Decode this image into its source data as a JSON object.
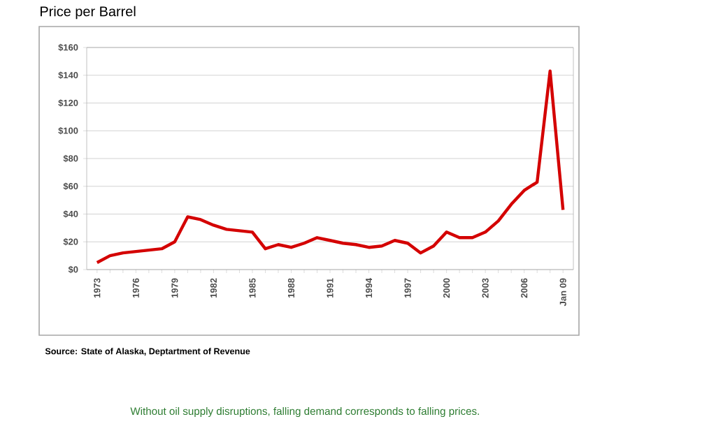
{
  "chart_data": {
    "type": "line",
    "title": "Price per Barrel",
    "annotations": [
      "Source: State of Alaska, Deptartment of Revenue",
      "Without oil supply disruptions, falling demand corresponds to falling prices."
    ],
    "x": [
      1973,
      1974,
      1975,
      1976,
      1977,
      1978,
      1979,
      1980,
      1981,
      1982,
      1983,
      1984,
      1985,
      1986,
      1987,
      1988,
      1989,
      1990,
      1991,
      1992,
      1993,
      1994,
      1995,
      1996,
      1997,
      1998,
      1999,
      2000,
      2001,
      2002,
      2003,
      2004,
      2005,
      2006,
      2007,
      2008,
      2009
    ],
    "series": [
      {
        "color": "#d40000",
        "values": [
          5,
          10,
          12,
          13,
          14,
          15,
          20,
          38,
          36,
          32,
          29,
          28,
          27,
          15,
          18,
          16,
          19,
          23,
          21,
          19,
          18,
          16,
          17,
          21,
          19,
          12,
          17,
          27,
          23,
          23,
          27,
          35,
          47,
          57,
          63,
          143,
          43
        ]
      }
    ],
    "xlim": [
      1972.2,
      2009.8
    ],
    "ylim": [
      0,
      160
    ],
    "xticks": [
      {
        "value": 1973,
        "label": "1973"
      },
      {
        "value": 1974,
        "label": null
      },
      {
        "value": 1975,
        "label": null
      },
      {
        "value": 1976,
        "label": "1976"
      },
      {
        "value": 1977,
        "label": null
      },
      {
        "value": 1978,
        "label": null
      },
      {
        "value": 1979,
        "label": "1979"
      },
      {
        "value": 1980,
        "label": null
      },
      {
        "value": 1981,
        "label": null
      },
      {
        "value": 1982,
        "label": "1982"
      },
      {
        "value": 1983,
        "label": null
      },
      {
        "value": 1984,
        "label": null
      },
      {
        "value": 1985,
        "label": "1985"
      },
      {
        "value": 1986,
        "label": null
      },
      {
        "value": 1987,
        "label": null
      },
      {
        "value": 1988,
        "label": "1988"
      },
      {
        "value": 1989,
        "label": null
      },
      {
        "value": 1990,
        "label": null
      },
      {
        "value": 1991,
        "label": "1991"
      },
      {
        "value": 1992,
        "label": null
      },
      {
        "value": 1993,
        "label": null
      },
      {
        "value": 1994,
        "label": "1994"
      },
      {
        "value": 1995,
        "label": null
      },
      {
        "value": 1996,
        "label": null
      },
      {
        "value": 1997,
        "label": "1997"
      },
      {
        "value": 1998,
        "label": null
      },
      {
        "value": 1999,
        "label": null
      },
      {
        "value": 2000,
        "label": "2000"
      },
      {
        "value": 2001,
        "label": null
      },
      {
        "value": 2002,
        "label": null
      },
      {
        "value": 2003,
        "label": "2003"
      },
      {
        "value": 2004,
        "label": null
      },
      {
        "value": 2005,
        "label": null
      },
      {
        "value": 2006,
        "label": "2006"
      },
      {
        "value": 2007,
        "label": null
      },
      {
        "value": 2008,
        "label": null
      },
      {
        "value": 2009,
        "label": "Jan 09"
      }
    ],
    "yticks": [
      {
        "value": 0,
        "label": "$0"
      },
      {
        "value": 20,
        "label": "$20"
      },
      {
        "value": 40,
        "label": "$40"
      },
      {
        "value": 60,
        "label": "$60"
      },
      {
        "value": 80,
        "label": "$80"
      },
      {
        "value": 100,
        "label": "$100"
      },
      {
        "value": 120,
        "label": "$120"
      },
      {
        "value": 140,
        "label": "$140"
      },
      {
        "value": 160,
        "label": "$160"
      }
    ],
    "grid": "y",
    "marker": "none",
    "line_style": "solid"
  }
}
